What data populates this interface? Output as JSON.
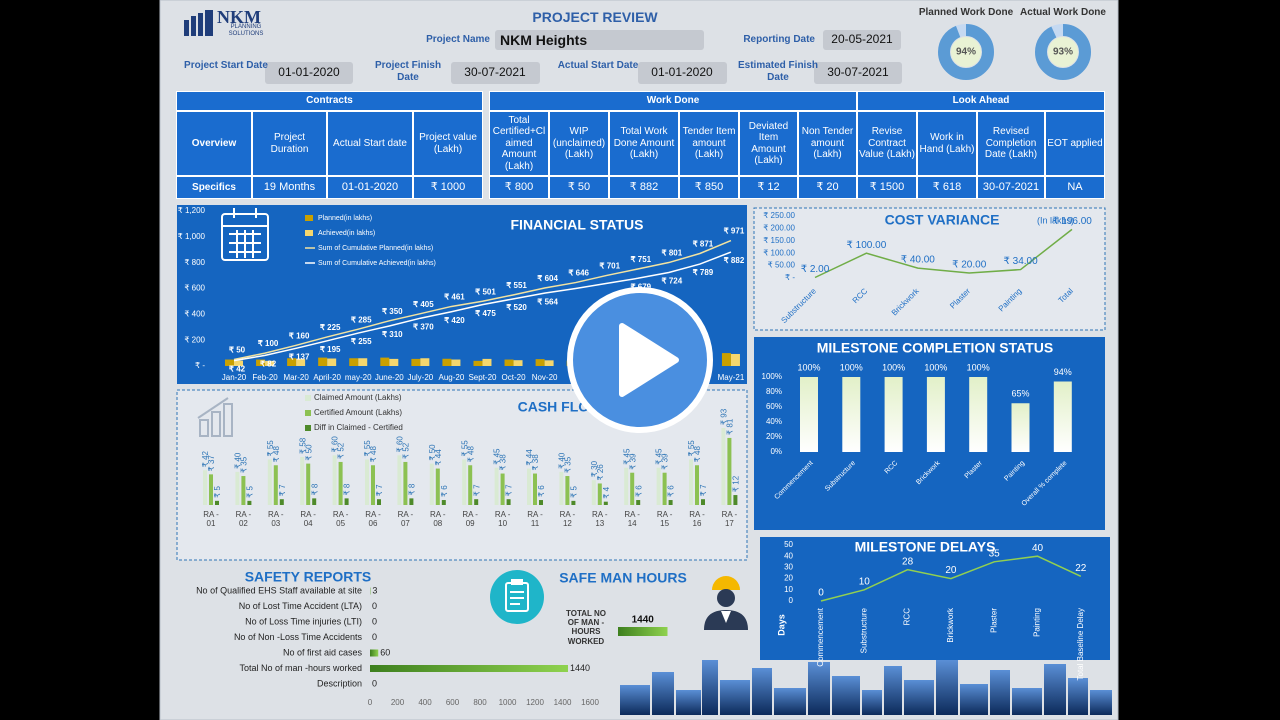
{
  "header": {
    "logo": "NKM",
    "logo_sub": "PLANNING SOLUTIONS",
    "title": "PROJECT REVIEW",
    "project_name_label": "Project Name",
    "project_name": "NKM Heights",
    "reporting_date_label": "Reporting Date",
    "reporting_date": "20-05-2021"
  },
  "dates": [
    {
      "label": "Project Start Date",
      "value": "01-01-2020"
    },
    {
      "label": "Project Finish Date",
      "value": "30-07-2021"
    },
    {
      "label": "Actual Start Date",
      "value": "01-01-2020"
    },
    {
      "label": "Estimated Finish Date",
      "value": "30-07-2021"
    }
  ],
  "table": {
    "groups": [
      {
        "title": "Contracts",
        "row_labels": [
          "Overview",
          "Specifics"
        ],
        "columns": [
          "Project Duration",
          "Actual Start date",
          "Project value (Lakh)"
        ],
        "values": [
          "19 Months",
          "01-01-2020",
          "₹ 1000"
        ]
      },
      {
        "title": "Work Done",
        "columns": [
          "Total Certified+Claimed Amount (Lakh)",
          "WIP (unclaimed) (Lakh)",
          "Total Work Done Amount (Lakh)",
          "Tender Item amount (Lakh)",
          "Deviated Item Amount (Lakh)",
          "Non Tender amount (Lakh)"
        ],
        "values": [
          "₹ 800",
          "₹ 50",
          "₹ 882",
          "₹ 850",
          "₹ 12",
          "₹ 20"
        ]
      },
      {
        "title": "Look Ahead",
        "columns": [
          "Revise Contract Value (Lakh)",
          "Work in Hand (Lakh)",
          "Revised Completion Date (Lakh)",
          "EOT applied"
        ],
        "values": [
          "₹ 1500",
          "₹ 618",
          "30-07-2021",
          "NA"
        ]
      }
    ]
  },
  "chart_data": [
    {
      "type": "donut",
      "title": "Planned Work Done",
      "values": [
        94
      ],
      "value_labels": [
        "94%"
      ],
      "color": "#5b9bd5"
    },
    {
      "type": "donut",
      "title": "Actual Work Done",
      "values": [
        93
      ],
      "value_labels": [
        "93%"
      ],
      "color": "#5b9bd5"
    },
    {
      "type": "combo",
      "title": "FINANCIAL STATUS",
      "categories": [
        "Jan-20",
        "Feb-20",
        "Mar-20",
        "April-20",
        "may-20",
        "June-20",
        "July-20",
        "Aug-20",
        "Sept-20",
        "Oct-20",
        "Nov-20",
        null,
        null,
        null,
        null,
        null,
        "May-21"
      ],
      "series": [
        {
          "name": "Planned(in lakhs)",
          "kind": "bar",
          "color": "#c9a000",
          "values": [
            50,
            50,
            60,
            65,
            60,
            65,
            55,
            56,
            40,
            50,
            53,
            42,
            55,
            50,
            50,
            70,
            100
          ]
        },
        {
          "name": "Achieved(in lakhs)",
          "kind": "bar",
          "color": "#f5d76e",
          "values": [
            42,
            40,
            55,
            58,
            60,
            55,
            60,
            50,
            55,
            45,
            44,
            36,
            40,
            39,
            45,
            65,
            93
          ]
        },
        {
          "name": "Sum of Cumulative Planned(in lakhs)",
          "kind": "line",
          "color": "#f3e3a0",
          "values": [
            50,
            100,
            160,
            225,
            285,
            350,
            405,
            461,
            501,
            551,
            604,
            646,
            701,
            751,
            801,
            871,
            971
          ],
          "value_labels": [
            "₹ 50",
            "₹ 100",
            "₹ 160",
            "₹ 225",
            "₹ 285",
            "₹ 350",
            "₹ 405",
            "₹ 461",
            "₹ 501",
            "₹ 551",
            "₹ 604",
            "₹ 646",
            "₹ 701",
            "₹ 751",
            "₹ 801",
            "₹ 871",
            "₹ 971"
          ]
        },
        {
          "name": "Sum of Cumulative Achieved(in lakhs)",
          "kind": "line",
          "color": "#ffffff",
          "values": [
            42,
            82,
            137,
            195,
            255,
            310,
            370,
            420,
            475,
            520,
            564,
            600,
            640,
            679,
            724,
            789,
            882
          ],
          "value_labels": [
            "₹ 42",
            "₹ 82",
            "₹ 137",
            "₹ 195",
            "₹ 255",
            "₹ 310",
            "₹ 370",
            "₹ 420",
            "₹ 475",
            "₹ 520",
            "₹ 564",
            null,
            null,
            "₹ 679",
            "₹ 724",
            "₹ 789",
            "₹ 882"
          ]
        }
      ],
      "ylim": [
        0,
        1200
      ],
      "yticks": [
        {
          "value": 0,
          "label": "₹ -"
        },
        {
          "value": 200,
          "label": "₹ 200"
        },
        {
          "value": 400,
          "label": "₹ 400"
        },
        {
          "value": 600,
          "label": "₹ 600"
        },
        {
          "value": 800,
          "label": "₹ 800"
        },
        {
          "value": 1000,
          "label": "₹ 1,000"
        },
        {
          "value": 1200,
          "label": "₹ 1,200"
        }
      ]
    },
    {
      "type": "line",
      "title": "COST VARIANCE",
      "subtitle": "(In lakhs)",
      "categories": [
        "Substructure",
        "RCC",
        "Brickwork",
        "Plaster",
        "Painting",
        "Total"
      ],
      "values": [
        2,
        100,
        40,
        20,
        34,
        196
      ],
      "value_labels": [
        "₹ 2.00",
        "₹ 100.00",
        "₹ 40.00",
        "₹ 20.00",
        "₹ 34.00",
        "₹ 196.00"
      ],
      "color": "#70ad47",
      "ylim": [
        0,
        250
      ],
      "yticks": [
        {
          "value": 0,
          "label": "₹ -"
        },
        {
          "value": 50,
          "label": "₹ 50.00"
        },
        {
          "value": 100,
          "label": "₹ 100.00"
        },
        {
          "value": 150,
          "label": "₹ 150.00"
        },
        {
          "value": 200,
          "label": "₹ 200.00"
        },
        {
          "value": 250,
          "label": "₹ 250.00"
        }
      ]
    },
    {
      "type": "bar",
      "title": "MILESTONE COMPLETION STATUS",
      "categories": [
        "Commencement",
        "Substructure",
        "RCC",
        "Brickwork",
        "Plaster",
        "Painting",
        "Overall % complete"
      ],
      "values": [
        100,
        100,
        100,
        100,
        100,
        65,
        94
      ],
      "value_labels": [
        "100%",
        "100%",
        "100%",
        "100%",
        "100%",
        "65%",
        "94%"
      ],
      "color": "#e2f0c8",
      "ylim": [
        0,
        100
      ],
      "yticks": [
        {
          "value": 0,
          "label": "0%"
        },
        {
          "value": 20,
          "label": "20%"
        },
        {
          "value": 40,
          "label": "40%"
        },
        {
          "value": 60,
          "label": "60%"
        },
        {
          "value": 80,
          "label": "80%"
        },
        {
          "value": 100,
          "label": "100%"
        }
      ]
    },
    {
      "type": "grouped_bar",
      "title": "CASH FLOW",
      "categories": [
        "RA - 01",
        "RA - 02",
        "RA - 03",
        "RA - 04",
        "RA - 05",
        "RA - 06",
        "RA - 07",
        "RA - 08",
        "RA - 09",
        "RA - 10",
        "RA - 11",
        "RA - 12",
        "RA - 13",
        "RA - 14",
        "RA - 15",
        "RA - 16",
        "RA - 17"
      ],
      "series": [
        {
          "name": "Claimed Amount (Lakhs)",
          "color": "#d9ead3",
          "values": [
            42,
            40,
            55,
            58,
            60,
            55,
            60,
            50,
            55,
            45,
            44,
            40,
            30,
            45,
            45,
            55,
            93
          ],
          "value_labels": [
            "₹ 42",
            "₹ 40",
            "₹ 55",
            "₹ 58",
            "₹ 60",
            "₹ 55",
            "₹ 60",
            "₹ 50",
            "₹ 55",
            "₹ 45",
            "₹ 44",
            "₹ 40",
            "₹ 30",
            "₹ 45",
            "₹ 45",
            "₹ 55",
            "₹ 93"
          ]
        },
        {
          "name": "Certified Amount (Lakhs)",
          "color": "#8cc152",
          "values": [
            37,
            35,
            48,
            50,
            52,
            48,
            52,
            44,
            48,
            38,
            38,
            35,
            26,
            39,
            39,
            48,
            81
          ],
          "value_labels": [
            "₹ 37",
            "₹ 35",
            "₹ 48",
            "₹ 50",
            "₹ 52",
            "₹ 48",
            "₹ 52",
            "₹ 44",
            "₹ 48",
            "₹ 38",
            "₹ 38",
            "₹ 35",
            "₹ 26",
            "₹ 39",
            "₹ 39",
            "₹ 48",
            "₹ 81"
          ]
        },
        {
          "name": "Diff in Claimed - Certified",
          "color": "#4e8a2a",
          "values": [
            5,
            5,
            7,
            8,
            8,
            7,
            8,
            6,
            7,
            7,
            6,
            5,
            4,
            6,
            6,
            7,
            12
          ],
          "value_labels": [
            "₹ 5",
            "₹ 5",
            "₹ 7",
            "₹ 8",
            "₹ 8",
            "₹ 7",
            "₹ 8",
            "₹ 6",
            "₹ 7",
            "₹ 7",
            "₹ 6",
            "₹ 5",
            "₹ 4",
            "₹ 6",
            "₹ 6",
            "₹ 7",
            "₹ 12"
          ]
        }
      ]
    },
    {
      "type": "line",
      "title": "MILESTONE DELAYS",
      "y_label": "Days",
      "categories": [
        "Commencement",
        "Substructure",
        "RCC",
        "Brickwork",
        "Plaster",
        "Painting",
        "Total Baseline Delay"
      ],
      "values": [
        0,
        10,
        28,
        20,
        35,
        40,
        22
      ],
      "color": "#92d050",
      "ylim": [
        0,
        50
      ],
      "yticks": [
        0,
        10,
        20,
        30,
        40,
        50
      ]
    },
    {
      "type": "hbar",
      "title": "SAFETY REPORTS",
      "categories": [
        "No of Qualified EHS Staff available at site",
        "No of Lost Time Accident (LTA)",
        "No of Loss Time injuries (LTI)",
        "No of Non -Loss Time Accidents",
        "No of first aid cases",
        "Total No of man -hours worked",
        "Description"
      ],
      "values": [
        3,
        0,
        0,
        0,
        60,
        1440,
        0
      ],
      "color": "#5aa02c",
      "xlim": [
        0,
        1600
      ],
      "xticks": [
        0,
        200,
        400,
        600,
        800,
        1000,
        1200,
        1400,
        1600
      ]
    },
    {
      "type": "hbar",
      "title": "SAFE MAN HOURS",
      "categories": [
        "TOTAL NO OF MAN - HOURS WORKED"
      ],
      "values": [
        1440
      ],
      "color": "#5aa02c"
    }
  ]
}
